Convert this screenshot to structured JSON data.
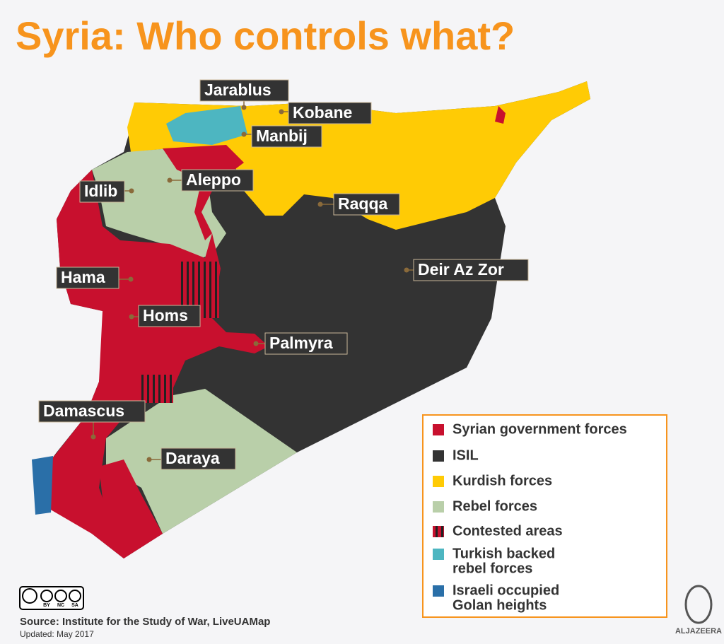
{
  "title": "Syria: Who controls what?",
  "cities": [
    "Jarablus",
    "Kobane",
    "Manbij",
    "Aleppo",
    "Idlib",
    "Raqqa",
    "Deir Az Zor",
    "Hama",
    "Homs",
    "Palmyra",
    "Damascus",
    "Daraya"
  ],
  "legend": [
    {
      "label": "Syrian government forces"
    },
    {
      "label": "ISIL"
    },
    {
      "label": "Kurdish forces"
    },
    {
      "label": "Rebel forces"
    },
    {
      "label": "Contested areas"
    },
    {
      "label": [
        "Turkish backed",
        "rebel forces"
      ]
    },
    {
      "label": [
        "Israeli occupied",
        "Golan heights"
      ]
    }
  ],
  "license": [
    "BY",
    "NC",
    "SA"
  ],
  "source": "Source: Institute for the Study of War, LiveUAMap",
  "updated": "Updated: May 2017",
  "logo": "ALJAZEERA"
}
